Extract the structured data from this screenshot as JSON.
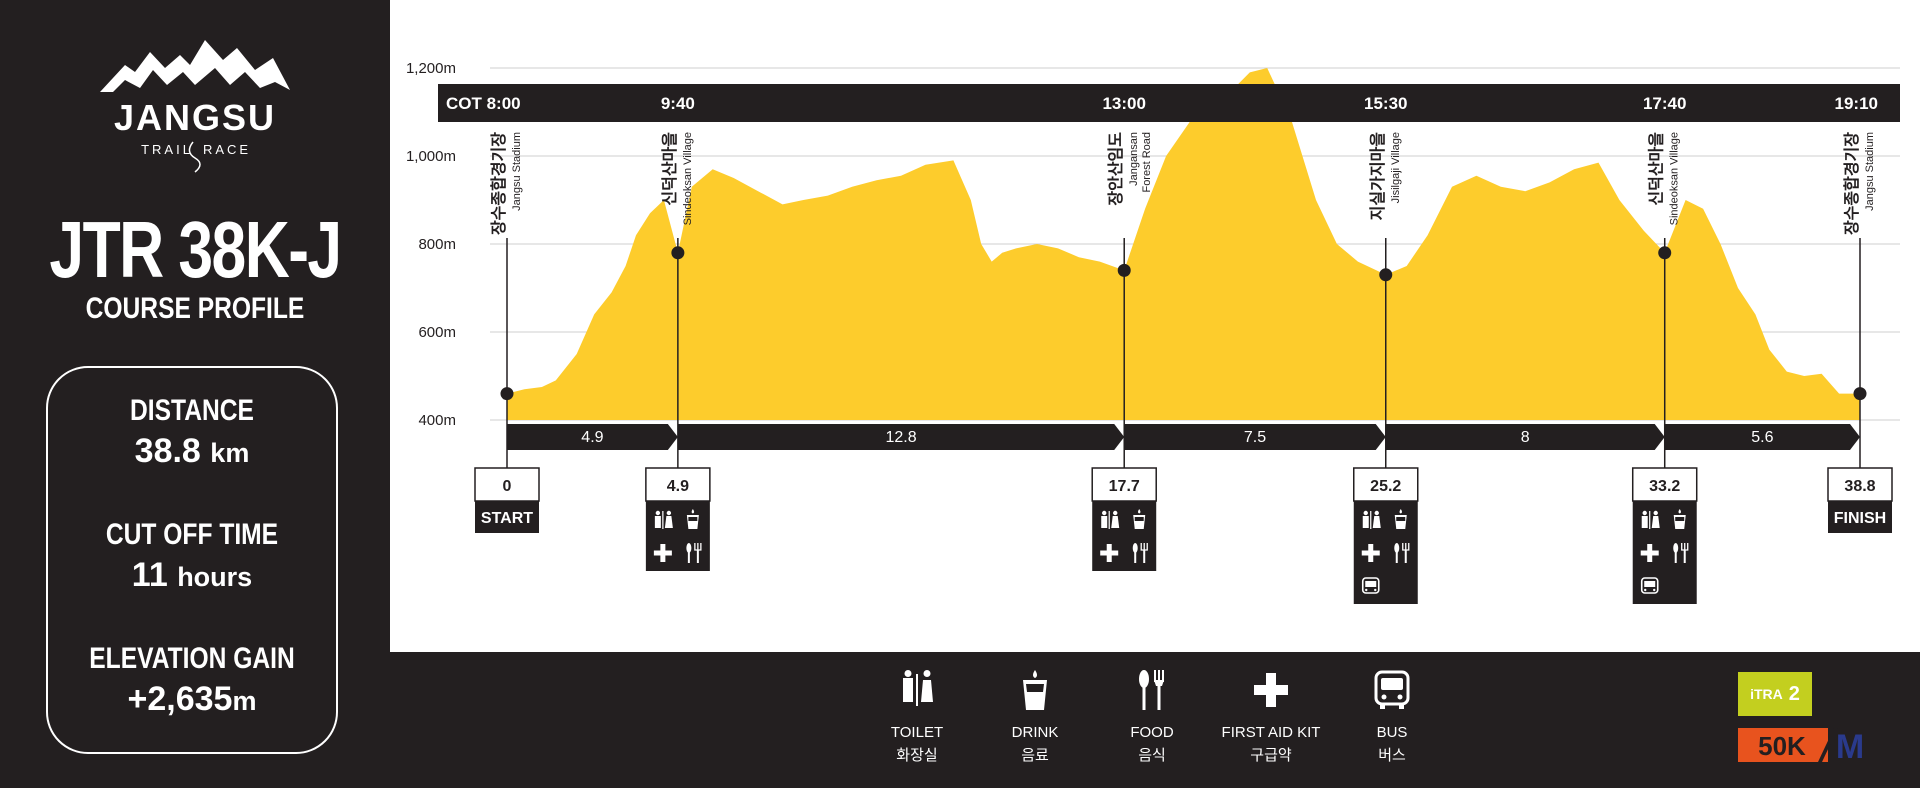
{
  "logo": {
    "name": "JANGSU",
    "tagline_left": "TRAIL",
    "tagline_right": "RACE"
  },
  "race": {
    "title": "JTR 38K-J",
    "subtitle": "COURSE PROFILE"
  },
  "stats": [
    {
      "label": "DISTANCE",
      "value": "38.8",
      "unit": "km"
    },
    {
      "label": "CUT OFF TIME",
      "value": "11",
      "unit": "hours"
    },
    {
      "label": "ELEVATION GAIN",
      "value": "+2,635",
      "unit": "m"
    }
  ],
  "chart_data": {
    "type": "area",
    "ylabel": "",
    "xlim": [
      0,
      38.8
    ],
    "ylim": [
      350,
      1300
    ],
    "y_ticks": [
      {
        "value": 400,
        "label": "400m"
      },
      {
        "value": 600,
        "label": "600m"
      },
      {
        "value": 800,
        "label": "800m"
      },
      {
        "value": 1000,
        "label": "1,000m"
      },
      {
        "value": 1200,
        "label": "1,200m"
      }
    ],
    "grid": true,
    "fill_color": "#fdcc2c",
    "series": [
      {
        "x": [
          0,
          0.5,
          1,
          1.4,
          2,
          2.5,
          3,
          3.4,
          3.7,
          4.1,
          4.5,
          4.9,
          5.3,
          5.9,
          6.5,
          7.2,
          7.9,
          8.5,
          9.2,
          9.9,
          10.6,
          11.3,
          12,
          12.8,
          13.3,
          13.6,
          13.9,
          14.2,
          14.6,
          15.2,
          15.8,
          16.4,
          17,
          17.7,
          18.3,
          18.9,
          19.6,
          20.3,
          20.8,
          21.3,
          21.8,
          22.5,
          23.2,
          23.8,
          24.4,
          25.2,
          25.8,
          26.4,
          27.1,
          27.8,
          28.5,
          29.2,
          29.9,
          30.6,
          31.3,
          31.9,
          32.6,
          33.2,
          33.8,
          34.3,
          34.8,
          35.3,
          35.8,
          36.2,
          36.7,
          37.2,
          37.7,
          38.2,
          38.8
        ],
        "y": [
          460,
          470,
          475,
          490,
          550,
          640,
          690,
          750,
          820,
          870,
          900,
          780,
          930,
          970,
          950,
          920,
          890,
          900,
          910,
          930,
          945,
          955,
          980,
          990,
          900,
          800,
          760,
          780,
          790,
          800,
          790,
          770,
          760,
          740,
          880,
          1000,
          1080,
          1140,
          1150,
          1190,
          1200,
          1080,
          900,
          800,
          760,
          730,
          750,
          820,
          930,
          955,
          930,
          920,
          940,
          970,
          985,
          900,
          830,
          780,
          900,
          880,
          800,
          700,
          640,
          560,
          510,
          500,
          505,
          460,
          460
        ]
      }
    ],
    "checkpoints": [
      {
        "km": 0,
        "ele": 460,
        "km_label": "0",
        "label_ko": "장수종합경기장",
        "label_en": "Jangsu Stadium",
        "cot": "COT 8:00",
        "tag": "START",
        "amenities": []
      },
      {
        "km": 4.9,
        "ele": 780,
        "km_label": "4.9",
        "label_ko": "신덕산마을",
        "label_en": "Sindeoksan Village",
        "cot": "9:40",
        "tag": "",
        "amenities": [
          "toilet-icon",
          "drink-icon",
          "first-aid-icon",
          "food-icon"
        ]
      },
      {
        "km": 17.7,
        "ele": 740,
        "km_label": "17.7",
        "label_ko": "장안산임도",
        "label_en": "Jangansan Forest Road",
        "cot": "13:00",
        "tag": "",
        "amenities": [
          "toilet-icon",
          "drink-icon",
          "first-aid-icon",
          "food-icon"
        ]
      },
      {
        "km": 25.2,
        "ele": 730,
        "km_label": "25.2",
        "label_ko": "지실가지마을",
        "label_en": "Jisilgaji Village",
        "cot": "15:30",
        "tag": "",
        "amenities": [
          "toilet-icon",
          "drink-icon",
          "first-aid-icon",
          "food-icon",
          "bus-icon"
        ]
      },
      {
        "km": 33.2,
        "ele": 780,
        "km_label": "33.2",
        "label_ko": "신덕산마을",
        "label_en": "Sindeoksan Village",
        "cot": "17:40",
        "tag": "",
        "amenities": [
          "toilet-icon",
          "drink-icon",
          "first-aid-icon",
          "food-icon",
          "bus-icon"
        ]
      },
      {
        "km": 38.8,
        "ele": 460,
        "km_label": "38.8",
        "label_ko": "장수종합경기장",
        "label_en": "Jangsu Stadium",
        "cot": "19:10",
        "tag": "FINISH",
        "amenities": []
      }
    ],
    "segments": [
      {
        "from": 0,
        "to": 4.9,
        "label": "4.9"
      },
      {
        "from": 4.9,
        "to": 17.7,
        "label": "12.8"
      },
      {
        "from": 17.7,
        "to": 25.2,
        "label": "7.5"
      },
      {
        "from": 25.2,
        "to": 33.2,
        "label": "8"
      },
      {
        "from": 33.2,
        "to": 38.8,
        "label": "5.6"
      }
    ]
  },
  "legend": [
    {
      "icon": "toilet-icon",
      "en": "TOILET",
      "ko": "화장실"
    },
    {
      "icon": "drink-icon",
      "en": "DRINK",
      "ko": "음료"
    },
    {
      "icon": "food-icon",
      "en": "FOOD",
      "ko": "음식"
    },
    {
      "icon": "first-aid-icon",
      "en": "FIRST AID KIT",
      "ko": "구급약"
    },
    {
      "icon": "bus-icon",
      "en": "BUS",
      "ko": "버스"
    }
  ],
  "badges": {
    "itra_text": "iTRA",
    "itra_points": "2",
    "fifty_k": "50K",
    "fifty_k_mark": "M"
  }
}
